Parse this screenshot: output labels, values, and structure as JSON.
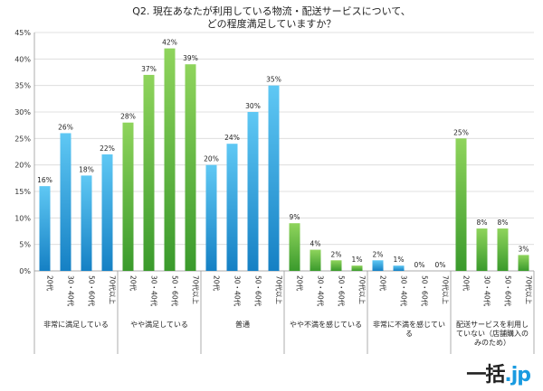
{
  "chart_data": {
    "type": "bar",
    "title_lines": [
      "Q2. 現在あなたが利用している物流・配送サービスについて、",
      "どの程度満足していますか？"
    ],
    "ylim": [
      0,
      45
    ],
    "yticks": [
      "0%",
      "5%",
      "10%",
      "15%",
      "20%",
      "25%",
      "30%",
      "35%",
      "40%",
      "45%"
    ],
    "grid": true,
    "age_categories": [
      "20代",
      "30・40代",
      "50・60代",
      "70代以上"
    ],
    "groups": [
      {
        "name": "非常に満足している",
        "name_lines": [
          "非常に満足している"
        ],
        "values": [
          16,
          26,
          18,
          22
        ],
        "labels": [
          "16%",
          "26%",
          "18%",
          "22%"
        ],
        "color": "blue"
      },
      {
        "name": "やや満足している",
        "name_lines": [
          "やや満足している"
        ],
        "values": [
          28,
          37,
          42,
          39
        ],
        "labels": [
          "28%",
          "37%",
          "42%",
          "39%"
        ],
        "color": "green"
      },
      {
        "name": "普通",
        "name_lines": [
          "普通"
        ],
        "values": [
          20,
          24,
          30,
          35
        ],
        "labels": [
          "20%",
          "24%",
          "30%",
          "35%"
        ],
        "color": "blue"
      },
      {
        "name": "やや不満を感じている",
        "name_lines": [
          "やや不満を感じている"
        ],
        "values": [
          9,
          4,
          2,
          1
        ],
        "labels": [
          "9%",
          "4%",
          "2%",
          "1%"
        ],
        "color": "green"
      },
      {
        "name": "非常に不満を感じている",
        "name_lines": [
          "非常に不満を感じてい",
          "る"
        ],
        "values": [
          2,
          1,
          0,
          0
        ],
        "labels": [
          "2%",
          "1%",
          "0%",
          "0%"
        ],
        "color": "blue"
      },
      {
        "name": "配送サービスを利用していない（店舗購入のみのため）",
        "name_lines": [
          "配送サービスを利用し",
          "ていない（店舗購入の",
          "みのため）"
        ],
        "values": [
          25,
          8,
          8,
          3
        ],
        "labels": [
          "25%",
          "8%",
          "8%",
          "3%"
        ],
        "color": "green"
      }
    ],
    "colors": {
      "blue_top": "#5fc8f4",
      "blue_bottom": "#1580c4",
      "green_top": "#8fd45c",
      "green_bottom": "#3a9a2c"
    }
  },
  "logo": {
    "main": "一括",
    "dot": ".",
    "jp": "jp"
  }
}
